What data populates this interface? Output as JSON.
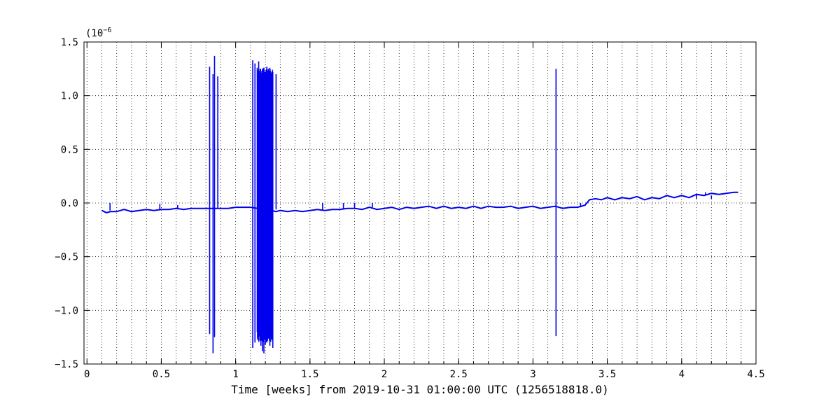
{
  "chart_data": {
    "type": "line",
    "title": "",
    "xlabel": "Time [weeks] from 2019-10-31 01:00:00 UTC (1256518818.0)",
    "ylabel": "",
    "y_multiplier_label": "(10",
    "y_multiplier_exp": "−6",
    "xlim": [
      -0.02,
      4.5
    ],
    "ylim": [
      -1.5,
      1.5
    ],
    "x_ticks": [
      0,
      0.5,
      1,
      1.5,
      2,
      2.5,
      3,
      3.5,
      4,
      4.5
    ],
    "x_tick_labels": [
      "0",
      "0.5",
      "1",
      "1.5",
      "2",
      "2.5",
      "3",
      "3.5",
      "4",
      "4.5"
    ],
    "y_ticks": [
      -1.5,
      -1.0,
      -0.5,
      0.0,
      0.5,
      1.0,
      1.5
    ],
    "y_tick_labels": [
      "−1.5",
      "−1.0",
      "−0.5",
      "0.0",
      "0.5",
      "1.0",
      "1.5"
    ],
    "grid": true,
    "series_color": "#0000ee",
    "series": [
      {
        "points": [
          [
            0.1,
            -0.07
          ],
          [
            0.13,
            -0.09
          ],
          [
            0.16,
            -0.08
          ],
          [
            0.2,
            -0.08
          ],
          [
            0.25,
            -0.06
          ],
          [
            0.3,
            -0.08
          ],
          [
            0.35,
            -0.07
          ],
          [
            0.4,
            -0.06
          ],
          [
            0.45,
            -0.07
          ],
          [
            0.5,
            -0.06
          ],
          [
            0.55,
            -0.06
          ],
          [
            0.6,
            -0.05
          ],
          [
            0.65,
            -0.06
          ],
          [
            0.7,
            -0.05
          ],
          [
            0.75,
            -0.05
          ],
          [
            0.8,
            -0.05
          ],
          [
            0.85,
            -0.05
          ],
          [
            0.9,
            -0.05
          ],
          [
            0.95,
            -0.05
          ],
          [
            1.0,
            -0.04
          ],
          [
            1.05,
            -0.04
          ],
          [
            1.1,
            -0.04
          ],
          [
            1.15,
            -0.05
          ],
          [
            1.2,
            -0.05
          ],
          [
            1.27,
            -0.08
          ],
          [
            1.3,
            -0.07
          ],
          [
            1.35,
            -0.08
          ],
          [
            1.4,
            -0.07
          ],
          [
            1.45,
            -0.08
          ],
          [
            1.5,
            -0.07
          ],
          [
            1.55,
            -0.06
          ],
          [
            1.6,
            -0.07
          ],
          [
            1.65,
            -0.06
          ],
          [
            1.7,
            -0.06
          ],
          [
            1.75,
            -0.05
          ],
          [
            1.8,
            -0.05
          ],
          [
            1.85,
            -0.06
          ],
          [
            1.9,
            -0.04
          ],
          [
            1.95,
            -0.06
          ],
          [
            2.0,
            -0.05
          ],
          [
            2.05,
            -0.04
          ],
          [
            2.1,
            -0.06
          ],
          [
            2.15,
            -0.04
          ],
          [
            2.2,
            -0.05
          ],
          [
            2.25,
            -0.04
          ],
          [
            2.3,
            -0.03
          ],
          [
            2.35,
            -0.05
          ],
          [
            2.4,
            -0.03
          ],
          [
            2.45,
            -0.05
          ],
          [
            2.5,
            -0.04
          ],
          [
            2.55,
            -0.05
          ],
          [
            2.6,
            -0.03
          ],
          [
            2.65,
            -0.05
          ],
          [
            2.7,
            -0.03
          ],
          [
            2.75,
            -0.04
          ],
          [
            2.8,
            -0.04
          ],
          [
            2.85,
            -0.03
          ],
          [
            2.9,
            -0.05
          ],
          [
            2.95,
            -0.04
          ],
          [
            3.0,
            -0.03
          ],
          [
            3.05,
            -0.05
          ],
          [
            3.1,
            -0.04
          ],
          [
            3.15,
            -0.03
          ],
          [
            3.2,
            -0.05
          ],
          [
            3.25,
            -0.04
          ],
          [
            3.3,
            -0.04
          ],
          [
            3.35,
            -0.02
          ],
          [
            3.38,
            0.03
          ],
          [
            3.42,
            0.04
          ],
          [
            3.46,
            0.03
          ],
          [
            3.5,
            0.05
          ],
          [
            3.55,
            0.03
          ],
          [
            3.6,
            0.05
          ],
          [
            3.65,
            0.04
          ],
          [
            3.7,
            0.06
          ],
          [
            3.75,
            0.03
          ],
          [
            3.8,
            0.05
          ],
          [
            3.85,
            0.04
          ],
          [
            3.9,
            0.07
          ],
          [
            3.95,
            0.05
          ],
          [
            4.0,
            0.07
          ],
          [
            4.05,
            0.05
          ],
          [
            4.1,
            0.08
          ],
          [
            4.15,
            0.07
          ],
          [
            4.2,
            0.09
          ],
          [
            4.25,
            0.08
          ],
          [
            4.3,
            0.09
          ],
          [
            4.35,
            0.1
          ],
          [
            4.38,
            0.1
          ]
        ],
        "spikes": [
          [
            0.155,
            -0.07,
            0.0
          ],
          [
            0.49,
            -0.06,
            -0.01
          ],
          [
            0.61,
            -0.06,
            -0.02
          ],
          [
            0.825,
            1.27,
            -1.22
          ],
          [
            0.848,
            1.2,
            -1.4
          ],
          [
            0.858,
            1.37,
            -1.25
          ],
          [
            0.88,
            1.18,
            -0.05
          ],
          [
            1.115,
            1.33,
            -1.35
          ],
          [
            1.13,
            1.3,
            -1.3
          ],
          [
            1.155,
            1.32,
            -1.28
          ],
          [
            1.17,
            1.23,
            -1.33
          ],
          [
            1.18,
            1.25,
            -1.38
          ],
          [
            1.19,
            1.26,
            -1.4
          ],
          [
            1.2,
            1.22,
            -1.32
          ],
          [
            1.21,
            1.27,
            -1.3
          ],
          [
            1.22,
            1.25,
            -1.25
          ],
          [
            1.23,
            1.26,
            -1.33
          ],
          [
            1.24,
            1.21,
            -1.27
          ],
          [
            1.25,
            1.22,
            -1.35
          ],
          [
            1.272,
            1.2,
            -0.06
          ],
          [
            1.585,
            -0.07,
            0.0
          ],
          [
            1.725,
            -0.06,
            0.0
          ],
          [
            1.8,
            -0.05,
            0.0
          ],
          [
            1.92,
            -0.04,
            0.0
          ],
          [
            3.155,
            1.25,
            -1.24
          ],
          [
            3.32,
            -0.04,
            0.0
          ],
          [
            4.1,
            0.08,
            0.04
          ],
          [
            4.16,
            0.1,
            0.07
          ],
          [
            4.2,
            0.07,
            0.04
          ]
        ],
        "dense_bands": [
          [
            1.145,
            1.26,
            -1.3,
            1.25
          ]
        ]
      }
    ]
  }
}
